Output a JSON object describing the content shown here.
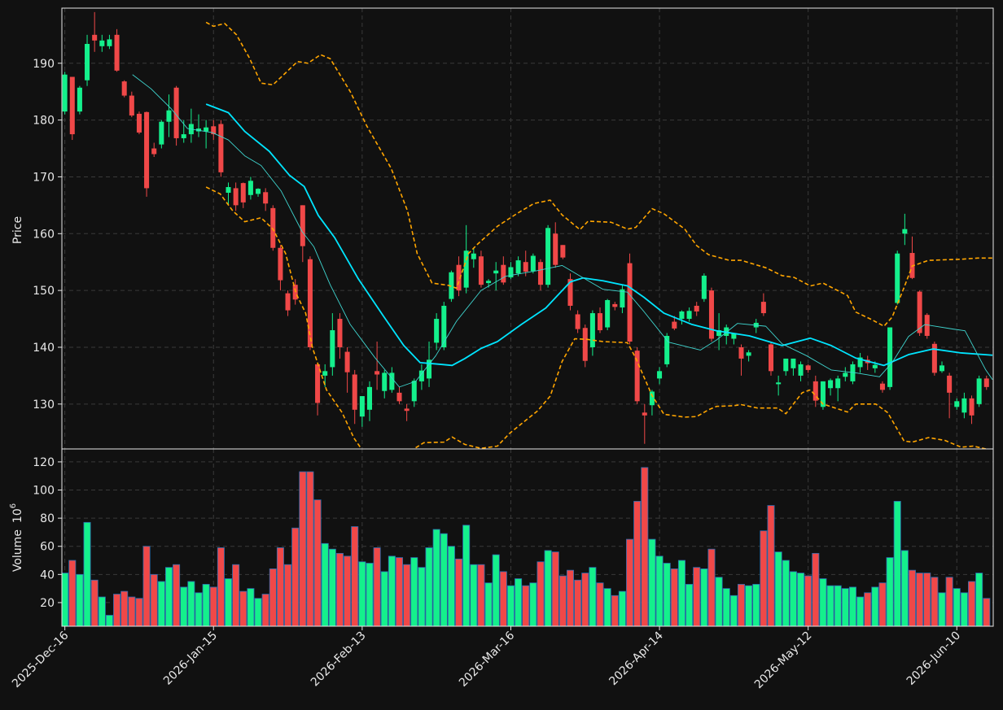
{
  "chart_data": [
    {
      "type": "candlestick",
      "ylabel": "Price",
      "up_color": "#14f08c",
      "down_color": "#f04848",
      "xlim": [
        -0.4,
        124.9
      ],
      "ylim": [
        122.1,
        199.7
      ],
      "yticks": [
        130,
        140,
        150,
        160,
        170,
        180,
        190
      ],
      "grid": true,
      "open": [
        181.5,
        187.6,
        181.5,
        187,
        195,
        193,
        193,
        195,
        186.8,
        184.3,
        181.1,
        181.4,
        175,
        175.7,
        179.7,
        185.7,
        176.8,
        177.5,
        178,
        178,
        178.9,
        179.3,
        167.2,
        168,
        168.9,
        166.8,
        167,
        167.3,
        164.5,
        157.5,
        149.5,
        151,
        165,
        155.5,
        137,
        135,
        136.5,
        145,
        139.2,
        135.2,
        127.8,
        129,
        135.8,
        132.3,
        132.5,
        132,
        129.2,
        130.5,
        134,
        134.5,
        140.8,
        140,
        148.5,
        154.5,
        150.5,
        155.5,
        156,
        151.3,
        153,
        154.5,
        152.3,
        153,
        155,
        153.4,
        155,
        151,
        160,
        158,
        152,
        145.8,
        143.4,
        140,
        146,
        143.5,
        147.6,
        147,
        154.8,
        139.4,
        128.5,
        129.8,
        134.5,
        137,
        144.5,
        145,
        145,
        147.3,
        148.5,
        150,
        142,
        142,
        141.5,
        140,
        138.5,
        143.5,
        148,
        140.5,
        133.5,
        135.8,
        136.3,
        135,
        136.8,
        134,
        129.5,
        132.8,
        132.8,
        134.8,
        134,
        136.5,
        137.8,
        136.3,
        133.6,
        133,
        147.8,
        160,
        156.6,
        149.8,
        145.7,
        140.6,
        135.8,
        135,
        129.5,
        128.5,
        131,
        130,
        134.5
      ],
      "high": [
        188.5,
        187.6,
        186,
        195,
        199,
        195,
        195,
        196,
        187,
        185,
        181.5,
        181.5,
        176,
        180,
        184.5,
        186,
        180,
        182,
        181,
        180,
        180,
        180,
        169,
        169,
        169,
        170,
        168,
        168,
        165,
        158,
        150,
        152,
        165,
        156,
        137,
        137,
        146,
        146,
        140,
        136,
        131,
        134,
        141,
        136,
        136.5,
        133,
        130,
        134.5,
        137,
        141,
        146,
        148,
        153.5,
        156,
        161.5,
        157.5,
        157,
        152,
        155,
        156,
        155,
        156,
        157,
        156.5,
        155.5,
        161.5,
        162,
        158,
        153,
        146.5,
        144,
        146.5,
        147,
        148.5,
        148,
        151,
        156.5,
        140,
        130,
        132.5,
        136.5,
        142.5,
        145.5,
        146.5,
        147,
        148,
        153,
        150.5,
        146,
        144,
        142.5,
        140.5,
        139.5,
        145,
        149.5,
        141,
        135,
        138,
        138,
        137.5,
        137,
        135,
        134,
        134.5,
        135,
        136.5,
        137.5,
        139,
        138.5,
        137.5,
        134,
        143.5,
        157,
        163.5,
        159.5,
        150,
        146,
        141,
        137.5,
        135.5,
        131,
        132,
        131.5,
        135,
        135
      ],
      "low": [
        181,
        176.5,
        181,
        186,
        192,
        192,
        192.5,
        188.5,
        184,
        180.5,
        177.5,
        166.5,
        173.5,
        175,
        177,
        175.5,
        176,
        176,
        177,
        175,
        176.5,
        170,
        165,
        164,
        164.5,
        166,
        166.5,
        164,
        157,
        150,
        145.5,
        147.5,
        155,
        139.5,
        128,
        133,
        135,
        138,
        132,
        126.5,
        126,
        127,
        132.5,
        131,
        132,
        130,
        127,
        129.5,
        132.5,
        133,
        139.5,
        139.5,
        148,
        149,
        149.5,
        154,
        150.5,
        150.5,
        150,
        151,
        152,
        152.5,
        152.5,
        153,
        150,
        150.5,
        154,
        155.5,
        146.5,
        142.5,
        136.5,
        138.5,
        142.5,
        143,
        146.5,
        146,
        140.5,
        130,
        123,
        128,
        133.5,
        136.5,
        143,
        144,
        144.5,
        145.5,
        148,
        141,
        139.5,
        140.5,
        140.5,
        135,
        137.5,
        142.5,
        145.5,
        135,
        131.5,
        135,
        135,
        134,
        135.5,
        129.5,
        129,
        131.5,
        130.5,
        134,
        133.5,
        135.5,
        136,
        135.5,
        132,
        132.5,
        147.5,
        158,
        152,
        142,
        141.5,
        135,
        135.5,
        127.5,
        129,
        127.5,
        126.5,
        129.5,
        132.5
      ],
      "close": [
        188,
        177.5,
        185.7,
        193.4,
        194,
        194,
        194.2,
        188.7,
        184.3,
        180.8,
        177.8,
        168,
        174,
        179.7,
        181.7,
        176.8,
        177.5,
        179.3,
        178.5,
        178.7,
        177.5,
        170.8,
        168.2,
        165,
        165.5,
        169.3,
        167.9,
        165.3,
        157.5,
        151.8,
        146.5,
        148.4,
        157.8,
        140,
        130.2,
        135.8,
        143,
        140,
        135.6,
        129,
        131.4,
        133,
        135.2,
        135.5,
        135.5,
        130.5,
        128.8,
        134.1,
        135.9,
        137.8,
        145,
        147.3,
        153.2,
        150,
        157,
        156.5,
        151,
        151.7,
        153.5,
        151.4,
        154.1,
        155.3,
        153.3,
        156.1,
        151,
        161,
        154.5,
        155.8,
        147.3,
        143.2,
        137.6,
        146,
        143,
        148.3,
        147.1,
        150.2,
        141,
        130.5,
        128,
        132.2,
        135.8,
        142,
        143.3,
        146.3,
        146.4,
        146.3,
        152.6,
        141.5,
        143,
        143.5,
        142.5,
        138,
        139.1,
        144.3,
        146,
        135.8,
        133.8,
        138,
        138,
        137,
        136,
        130.6,
        134,
        134.2,
        134.5,
        135.5,
        137,
        138.2,
        137.2,
        136.9,
        132.5,
        143.5,
        156.5,
        160.8,
        152.2,
        142.5,
        142,
        135.5,
        136.8,
        132,
        130.5,
        131,
        128,
        134.5,
        133
      ],
      "lines": [
        {
          "color": "#00e5ff",
          "style": "thick",
          "x": [
            19,
            22,
            24.2,
            27.5,
            30.2,
            32.2,
            34.1,
            36.3,
            39.5,
            42.8,
            45.6,
            47.8,
            50.5,
            52.1,
            53.8,
            56,
            58.2,
            61.4,
            64.7,
            68,
            69.7,
            72.4,
            75.7,
            77.9,
            80.6,
            84.4,
            87.7,
            92.1,
            96.5,
            100.3,
            103.1,
            106.4,
            110.2,
            113.5,
            116.8,
            120.6,
            124.8
          ],
          "values": [
            182.8,
            181.3,
            178,
            174.5,
            170.3,
            168.3,
            163.2,
            159.3,
            152,
            145.6,
            140.3,
            137.3,
            137,
            136.8,
            138,
            139.8,
            141,
            144,
            146.9,
            151.5,
            152.2,
            151.7,
            150.8,
            148.8,
            146,
            144,
            142.9,
            142,
            140.3,
            141.6,
            140.3,
            138.1,
            136.8,
            138.7,
            139.7,
            139,
            138.6
          ]
        },
        {
          "color": "#3fd6d0",
          "style": "thin",
          "x": [
            9.1,
            11.6,
            14.3,
            16.5,
            19.8,
            22,
            24.2,
            26.4,
            29.1,
            31.9,
            33.5,
            35.7,
            38.4,
            41.7,
            45,
            47.2,
            49.9,
            52.7,
            56,
            59.3,
            63.6,
            66.9,
            69.1,
            72.4,
            75.7,
            77.9,
            81.2,
            85.5,
            87.7,
            90.5,
            94.3,
            96.5,
            99.8,
            103.1,
            106.4,
            109.6,
            111.3,
            113.5,
            115.7,
            119.5,
            121.1,
            123.9,
            124.8
          ],
          "values": [
            188,
            185.5,
            182,
            178.5,
            177.8,
            176.5,
            173.7,
            172,
            167.5,
            160.4,
            157.7,
            151,
            144,
            138.2,
            133,
            134,
            138.5,
            144.6,
            150,
            152.5,
            153.5,
            154.4,
            152.7,
            150.2,
            149.7,
            146.3,
            140.9,
            139.5,
            141.3,
            144.2,
            143.7,
            140.6,
            138.5,
            136,
            135.5,
            134.8,
            137.3,
            141.9,
            144,
            143.2,
            142.9,
            136,
            134.3
          ]
        },
        {
          "color": "#ffa500",
          "style": "dashed",
          "x": [
            19,
            20,
            21.5,
            23.1,
            24.8,
            26.4,
            28,
            29.7,
            31.3,
            32.7,
            34.4,
            35.7,
            38.4,
            40.6,
            43.9,
            46.1,
            47.4,
            49.4,
            51.6,
            52.7,
            54.3,
            55.4,
            58.2,
            60.9,
            63.1,
            65.3,
            66.9,
            69.3,
            70.4,
            73.5,
            75.7,
            76.8,
            79,
            80.6,
            83.4,
            85,
            86.6,
            89.4,
            91,
            94.3,
            96.5,
            98.1,
            100.3,
            102,
            105.3,
            106.4,
            108.5,
            110.2,
            111.3,
            112.9,
            114,
            116.2,
            120.6,
            122.8,
            124.8
          ],
          "values": [
            197.2,
            196.5,
            197,
            195,
            191,
            186.5,
            186.2,
            188.3,
            190.3,
            190,
            191.5,
            190.8,
            185,
            179,
            171.5,
            164,
            156.5,
            151.3,
            150.9,
            150.4,
            156.5,
            158,
            161.3,
            163.6,
            165.3,
            165.9,
            163.3,
            160.7,
            162.2,
            162,
            160.8,
            161.1,
            164.4,
            163.5,
            160.8,
            157.9,
            156.3,
            155.3,
            155.3,
            154,
            152.6,
            152.3,
            150.8,
            151.3,
            149.1,
            146.2,
            144.9,
            143.7,
            145.3,
            150.5,
            154.3,
            155.3,
            155.5,
            155.7,
            155.7
          ]
        },
        {
          "color": "#ffa500",
          "style": "dashed",
          "x": [
            19,
            20.9,
            22.6,
            24.2,
            26.4,
            28,
            29.7,
            31.1,
            32.4,
            33.3,
            35.2,
            37.3,
            38.9,
            39.8,
            null,
            47.2,
            48.3,
            51,
            52.1,
            53.8,
            56,
            58.2,
            59.8,
            61.4,
            63.6,
            65.3,
            66.9,
            68.6,
            70.2,
            72.4,
            75.7,
            76.8,
            79,
            80.6,
            83.4,
            85,
            86.6,
            87.7,
            89.9,
            91,
            93.2,
            95.9,
            97,
            99.2,
            100.3,
            102,
            105.3,
            106.4,
            109.1,
            110.7,
            112.9,
            114,
            116.2,
            118.4,
            120.6,
            122.2,
            123.9
          ],
          "values": [
            168.2,
            167,
            164,
            162.1,
            162.8,
            160.8,
            156.5,
            149.5,
            146,
            140,
            132.5,
            128.5,
            124,
            122.3,
            null,
            122.3,
            123.2,
            123.3,
            124.2,
            122.9,
            122.2,
            122.6,
            124.8,
            126.5,
            128.8,
            131.4,
            137.5,
            141.5,
            141.4,
            141,
            140.8,
            138.1,
            131.5,
            128.2,
            127.7,
            127.8,
            129,
            129.6,
            129.7,
            129.9,
            129.3,
            129.3,
            128.3,
            132,
            132.5,
            130,
            128.6,
            130,
            130,
            128.5,
            123.5,
            123.3,
            124.1,
            123.6,
            122.4,
            122.6,
            122.1
          ]
        }
      ]
    },
    {
      "type": "bar",
      "ylabel": "Volume",
      "multiplier": {
        "base": "10",
        "exponent": "6"
      },
      "edge_color": "#2c6cb0",
      "xlim": [
        -0.4,
        124.9
      ],
      "ylim": [
        3.2,
        129.2
      ],
      "yticks": [
        20,
        40,
        60,
        80,
        100,
        120
      ],
      "grid": true,
      "xticks": [
        {
          "value": 0,
          "label": "2025-Dec-16"
        },
        {
          "value": 20,
          "label": "2026-Jan-15"
        },
        {
          "value": 40,
          "label": "2026-Feb-13"
        },
        {
          "value": 60,
          "label": "2026-Mar-16"
        },
        {
          "value": 80,
          "label": "2026-Apr-14"
        },
        {
          "value": 100,
          "label": "2026-May-12"
        },
        {
          "value": 120,
          "label": "2026-Jun-10"
        }
      ],
      "values": [
        41,
        50,
        40,
        77,
        36,
        24,
        11,
        26,
        28,
        24,
        23,
        60,
        40,
        35,
        45,
        47,
        31,
        35,
        27,
        33,
        31,
        59,
        37,
        47,
        28,
        30,
        23,
        26,
        44,
        59,
        47,
        73,
        113,
        113,
        93,
        62,
        58,
        55,
        53,
        74,
        49,
        48,
        59,
        42,
        53,
        52,
        47,
        52,
        45,
        59,
        72,
        69,
        60,
        51,
        75,
        47,
        47,
        34,
        54,
        42,
        32,
        37,
        32,
        34,
        49,
        57,
        56,
        39,
        43,
        36,
        41,
        45,
        34,
        30,
        25,
        28,
        65,
        92,
        116,
        65,
        53,
        48,
        44,
        50,
        33,
        45,
        44,
        58,
        38,
        30,
        25,
        33,
        32,
        33,
        71,
        89,
        56,
        50,
        42,
        41,
        39,
        55,
        37,
        32,
        32,
        30,
        31,
        24,
        27,
        31,
        34,
        52,
        92,
        57,
        43,
        41,
        41,
        38,
        27,
        38,
        30,
        27,
        35,
        41,
        23
      ]
    }
  ]
}
